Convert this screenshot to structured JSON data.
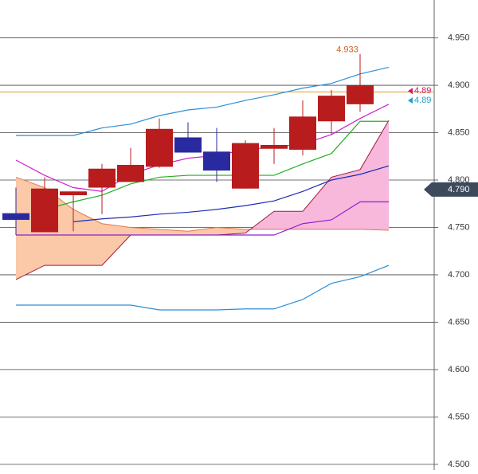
{
  "chart_data": {
    "type": "candlestick",
    "categories": [
      null,
      null,
      null,
      null,
      null,
      null,
      null,
      null,
      null,
      null,
      null,
      null,
      null,
      null
    ],
    "open": [
      4.765,
      4.745,
      4.784,
      4.792,
      4.798,
      4.814,
      4.845,
      4.83,
      4.791,
      4.833,
      4.832,
      4.862,
      4.88,
      null
    ],
    "high": [
      4.792,
      4.803,
      4.788,
      4.817,
      4.834,
      4.865,
      4.861,
      4.855,
      4.842,
      4.855,
      4.884,
      4.895,
      4.933,
      null
    ],
    "low": [
      4.742,
      4.745,
      4.746,
      4.764,
      4.798,
      4.813,
      4.829,
      4.798,
      4.791,
      4.817,
      4.826,
      4.848,
      4.872,
      null
    ],
    "close": [
      4.758,
      4.791,
      4.788,
      4.812,
      4.816,
      4.854,
      4.829,
      4.81,
      4.839,
      4.837,
      4.867,
      4.889,
      4.9,
      null
    ],
    "up_color": "#b81c1c",
    "down_color": "#2a2aa0",
    "ylim": [
      4.494,
      4.99
    ],
    "yticks": [
      {
        "value": 4.95,
        "label": "4.950"
      },
      {
        "value": 4.9,
        "label": "4.900"
      },
      {
        "value": 4.85,
        "label": "4.850"
      },
      {
        "value": 4.8,
        "label": "4.800"
      },
      {
        "value": 4.75,
        "label": "4.750"
      },
      {
        "value": 4.7,
        "label": "4.700"
      },
      {
        "value": 4.65,
        "label": "4.650"
      },
      {
        "value": 4.6,
        "label": "4.600"
      },
      {
        "value": 4.55,
        "label": "4.550"
      },
      {
        "value": 4.5,
        "label": "4.500"
      }
    ],
    "grid": true,
    "cloud": {
      "span_a": [
        4.803,
        4.792,
        4.769,
        4.754,
        4.75,
        4.748,
        4.746,
        4.75,
        4.748,
        4.748,
        4.748,
        4.748,
        4.748,
        4.747
      ],
      "span_b": [
        4.695,
        4.71,
        4.71,
        4.71,
        4.742,
        4.742,
        4.742,
        4.742,
        4.744,
        4.767,
        4.767,
        4.803,
        4.811,
        4.863
      ],
      "a_color": "#e07a4a",
      "b_color": "#a01c3c",
      "a_fill": "#fbc8a8",
      "b_fill": "#f7b8dc"
    },
    "lines": [
      {
        "color": "#2a8fd8",
        "values": [
          4.847,
          4.847,
          4.847,
          4.855,
          4.859,
          4.868,
          4.874,
          4.877,
          4.884,
          4.89,
          4.897,
          4.902,
          4.912,
          4.919
        ]
      },
      {
        "color": "#2a8fd8",
        "values": [
          4.668,
          4.668,
          4.668,
          4.668,
          4.668,
          4.663,
          4.663,
          4.663,
          4.664,
          4.664,
          4.674,
          4.691,
          4.698,
          4.71
        ]
      },
      {
        "color": "#1c2cb8",
        "values": [
          null,
          null,
          4.756,
          4.759,
          4.761,
          4.764,
          4.766,
          4.769,
          4.773,
          4.778,
          4.788,
          4.8,
          4.806,
          4.815
        ]
      },
      {
        "color": "#22b022",
        "values": [
          null,
          4.769,
          4.777,
          4.784,
          4.796,
          4.803,
          4.805,
          4.805,
          4.805,
          4.805,
          4.817,
          4.828,
          4.862,
          4.862
        ]
      },
      {
        "color": "#d020d0",
        "values": [
          4.821,
          4.805,
          4.792,
          4.788,
          4.806,
          4.816,
          4.823,
          4.826,
          4.832,
          4.835,
          4.838,
          4.848,
          4.865,
          4.88
        ]
      },
      {
        "color": "#9020d0",
        "values": [
          4.742,
          4.742,
          4.742,
          4.742,
          4.742,
          4.742,
          4.742,
          4.742,
          4.742,
          4.742,
          4.754,
          4.758,
          4.777,
          4.777
        ]
      }
    ],
    "levels": [
      {
        "value": 4.893,
        "color": "#e0a020"
      }
    ],
    "high_annotation": {
      "text": "4.933",
      "color": "#d06020"
    },
    "side_labels": [
      {
        "value": 4.894,
        "label": "4.89",
        "color": "#d02060"
      },
      {
        "value": 4.889,
        "label": "4.89",
        "color": "#20a0d0"
      }
    ],
    "price_marker": {
      "value": 4.79,
      "label": "4.790",
      "color": "#3c4a5c"
    }
  }
}
